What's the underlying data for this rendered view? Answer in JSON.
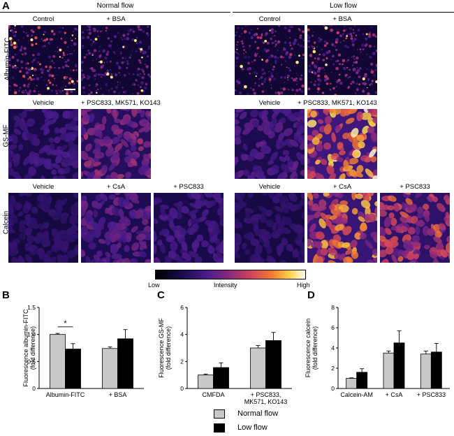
{
  "panel_labels": {
    "a": "A",
    "b": "B",
    "c": "C",
    "d": "D"
  },
  "panel_a": {
    "group_headers": [
      "Normal flow",
      "Low flow"
    ],
    "row_labels": [
      "Albumin-FITC",
      "GS-MF",
      "Calcein"
    ],
    "conditions": {
      "row1_normal": [
        "Control",
        "+ BSA"
      ],
      "row1_low": [
        "Control",
        "+ BSA"
      ],
      "row2_normal": [
        "Vehicle",
        "+ PSC833, MK571, KO143"
      ],
      "row2_low": [
        "Vehicle",
        "+ PSC833, MK571, KO143"
      ],
      "row3_normal": [
        "Vehicle",
        "+ CsA",
        "+ PSC833"
      ],
      "row3_low": [
        "Vehicle",
        "+ CsA",
        "+ PSC833"
      ]
    }
  },
  "colorbar": {
    "low": "Low",
    "mid": "Intensity",
    "high": "High"
  },
  "legend": {
    "items": [
      {
        "name": "Normal flow",
        "color": "#c8c8c8"
      },
      {
        "name": "Low flow",
        "color": "#000000"
      }
    ]
  },
  "chart_data": [
    {
      "type": "bar",
      "id": "B",
      "ylabel": "Fluorescence albumin-FITC (fold difference)",
      "categories": [
        "Albumin-FITC",
        "+ BSA"
      ],
      "ylim": [
        0,
        1.5
      ],
      "yticks": [
        "0",
        "0.5",
        "1.0",
        "1.5"
      ],
      "series": [
        {
          "name": "Normal flow",
          "values": [
            1.0,
            0.74
          ],
          "errors": [
            0.02,
            0.03
          ]
        },
        {
          "name": "Low flow",
          "values": [
            0.73,
            0.92
          ],
          "errors": [
            0.1,
            0.17
          ]
        }
      ],
      "annotation": "*"
    },
    {
      "type": "bar",
      "id": "C",
      "ylabel": "Fluorescence GS-MF (fold difference)",
      "categories": [
        "CMFDA",
        "+ PSC833,\nMK571, KO143"
      ],
      "ylim": [
        0,
        6
      ],
      "yticks": [
        "0",
        "2",
        "4",
        "6"
      ],
      "series": [
        {
          "name": "Normal flow",
          "values": [
            1.0,
            3.0
          ],
          "errors": [
            0.07,
            0.18
          ]
        },
        {
          "name": "Low flow",
          "values": [
            1.55,
            3.55
          ],
          "errors": [
            0.35,
            0.6
          ]
        }
      ]
    },
    {
      "type": "bar",
      "id": "D",
      "ylabel": "Fluorescence calcein (fold difference)",
      "categories": [
        "Calcein-AM",
        "+ CsA",
        "+ PSC833"
      ],
      "ylim": [
        0,
        8
      ],
      "yticks": [
        "0",
        "2",
        "4",
        "6",
        "8"
      ],
      "series": [
        {
          "name": "Normal flow",
          "values": [
            1.0,
            3.5,
            3.4
          ],
          "errors": [
            0.05,
            0.2,
            0.3
          ]
        },
        {
          "name": "Low flow",
          "values": [
            1.6,
            4.5,
            3.6
          ],
          "errors": [
            0.35,
            1.2,
            0.85
          ]
        }
      ]
    }
  ]
}
